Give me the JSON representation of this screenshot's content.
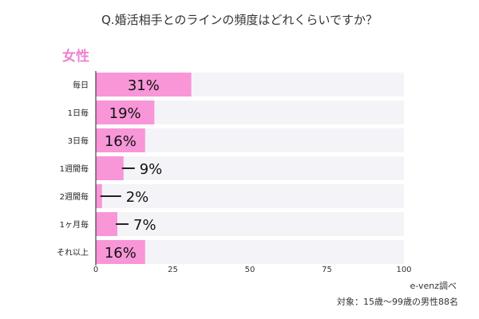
{
  "chart_data": {
    "type": "bar",
    "orientation": "horizontal",
    "title": "Q.婚活相手とのラインの頻度はどれくらいですか？",
    "subtitle": "女性",
    "categories": [
      "毎日",
      "1日毎",
      "3日毎",
      "1週間毎",
      "2週間毎",
      "1ヶ月毎",
      "それ以上"
    ],
    "values": [
      31,
      19,
      16,
      9,
      2,
      7,
      16
    ],
    "value_labels": [
      "31%",
      "19%",
      "16%",
      "9%",
      "2%",
      "7%",
      "16%"
    ],
    "xlim": [
      0,
      100
    ],
    "x_ticks": [
      0,
      25,
      50,
      75,
      100
    ],
    "x_tick_labels": [
      "0",
      "25",
      "50",
      "75",
      "100"
    ],
    "grid": false,
    "source": "e-venz調べ",
    "note": "対象：15歳〜99歳の男性88名",
    "colors": {
      "bar": "#f896d8",
      "track": "#f4f4f8",
      "subtitle": "#ee82d0",
      "axis": "#222222"
    }
  }
}
